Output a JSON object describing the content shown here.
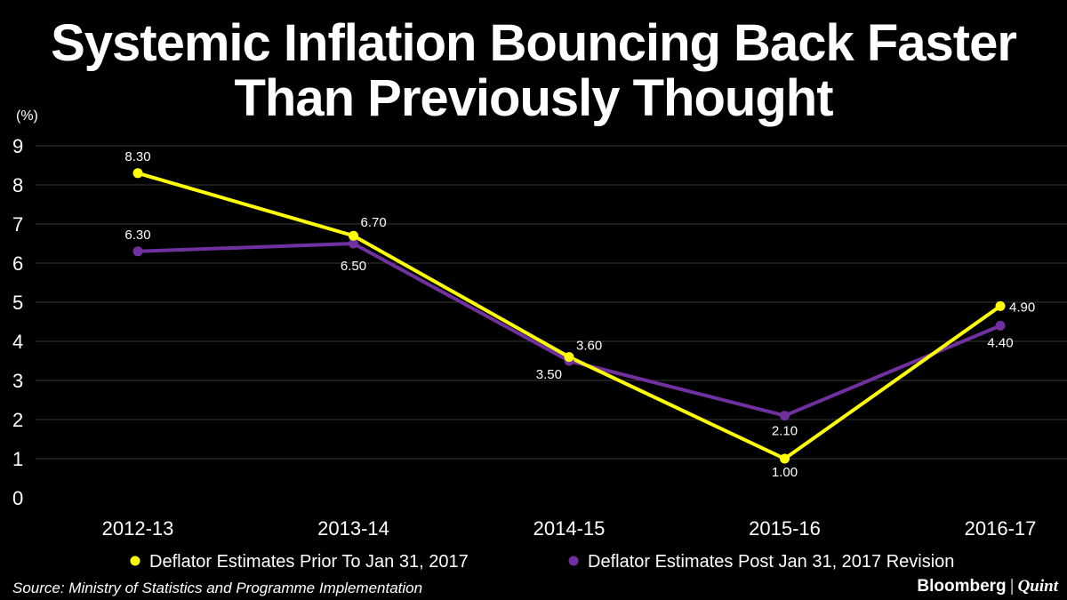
{
  "chart_data": {
    "type": "line",
    "title": "Systemic Inflation Bouncing Back Faster Than Previously Thought",
    "title_lines": [
      "Systemic Inflation Bouncing Back Faster",
      "Than Previously Thought"
    ],
    "ylabel": "(%)",
    "xlabel": "",
    "ylim": [
      0,
      9
    ],
    "yticks": [
      "0",
      "1",
      "2",
      "3",
      "4",
      "5",
      "6",
      "7",
      "8",
      "9"
    ],
    "categories": [
      "2012-13",
      "2013-14",
      "2014-15",
      "2015-16",
      "2016-17"
    ],
    "grid": true,
    "legend_position": "bottom",
    "series": [
      {
        "name": "Deflator Estimates Prior To Jan 31, 2017",
        "color": "#ffff00",
        "values": [
          8.3,
          6.7,
          3.6,
          1.0,
          4.9
        ],
        "labels": [
          "8.30",
          "6.70",
          "3.60",
          "1.00",
          "4.90"
        ]
      },
      {
        "name": "Deflator Estimates Post Jan 31, 2017 Revision",
        "color": "#7030a0",
        "values": [
          6.3,
          6.5,
          3.5,
          2.1,
          4.4
        ],
        "labels": [
          "6.30",
          "6.50",
          "3.50",
          "2.10",
          "4.40"
        ]
      }
    ]
  },
  "footer": {
    "source": "Source: Ministry of Statistics and Programme Implementation",
    "brand_left": "Bloomberg",
    "brand_sep": "|",
    "brand_right": "Quint"
  }
}
